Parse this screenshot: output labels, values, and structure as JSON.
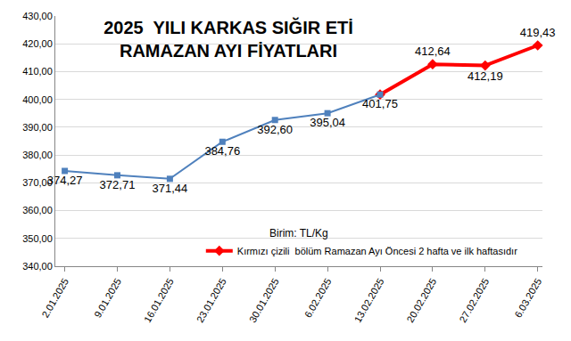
{
  "chart_data": {
    "type": "line",
    "title": "2025  YILI KARKAS SIĞIR ETİ\nRAMAZAN AYI FİYATLARI",
    "annotations": [
      "Birim: TL/Kg"
    ],
    "categories": [
      "2.01.2025",
      "9.01.2025",
      "16.01.2025",
      "23.01.2025",
      "30.01.2025",
      "6.02.2025",
      "13.02.2025",
      "20.02.2025",
      "27.02.2025",
      "6.03.2025"
    ],
    "series": [
      {
        "color": "#4f81bd",
        "marker": "square",
        "values": [
          374.27,
          372.71,
          371.44,
          384.76,
          392.6,
          395.04,
          401.75,
          null,
          null,
          null
        ],
        "value_labels": [
          "374,27",
          "372,71",
          "371,44",
          "384,76",
          "392,60",
          "395,04",
          "401,75",
          null,
          null,
          null
        ]
      },
      {
        "name": "Kırmızı çizili  bölüm Ramazan Ayı Öncesi 2 hafta ve ilk haftasıdır",
        "color": "#ff0000",
        "marker": "diamond",
        "values": [
          null,
          null,
          null,
          null,
          null,
          null,
          401.75,
          412.64,
          412.19,
          419.43
        ],
        "value_labels": [
          null,
          null,
          null,
          null,
          null,
          null,
          "401,75",
          "412,64",
          "412,19",
          "419,43"
        ]
      }
    ],
    "ylim": [
      340,
      430
    ],
    "yticks": [
      {
        "value": 340,
        "label": "340,00"
      },
      {
        "value": 350,
        "label": "350,00"
      },
      {
        "value": 360,
        "label": "360,00"
      },
      {
        "value": 370,
        "label": "370,00"
      },
      {
        "value": 380,
        "label": "380,00"
      },
      {
        "value": 390,
        "label": "390,00"
      },
      {
        "value": 400,
        "label": "400,00"
      },
      {
        "value": 410,
        "label": "410,00"
      },
      {
        "value": 420,
        "label": "420,00"
      },
      {
        "value": 430,
        "label": "430,00"
      }
    ],
    "grid": true,
    "data_labels": true,
    "legend": "bottom"
  }
}
